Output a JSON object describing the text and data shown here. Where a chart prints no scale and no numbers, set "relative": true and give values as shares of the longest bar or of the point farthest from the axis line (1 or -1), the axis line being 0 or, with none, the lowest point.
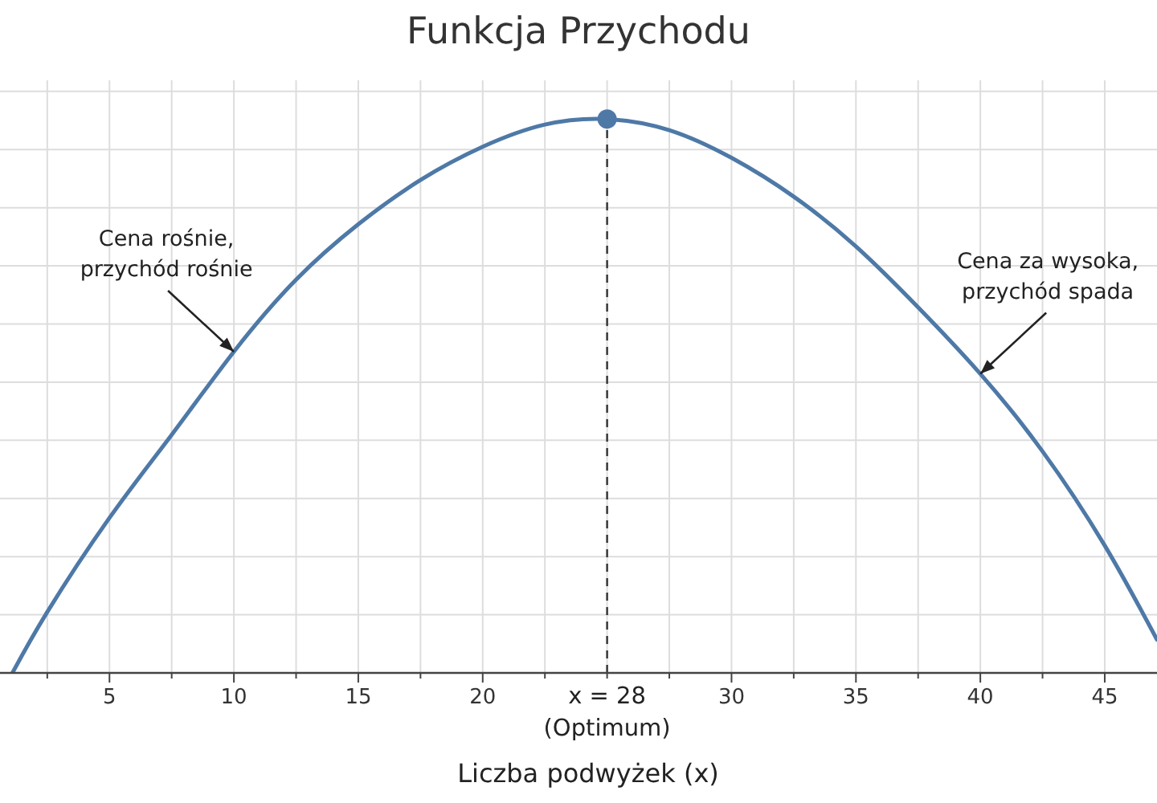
{
  "chart_data": {
    "type": "line",
    "title": "Funkcja Przychodu",
    "xlabel": "Liczba podwyżek (x)",
    "relative": true,
    "xlim": [
      0.6,
      47.1
    ],
    "xticks": [
      {
        "value": 2.5,
        "label": null
      },
      5,
      {
        "value": 7.5,
        "label": null
      },
      10,
      {
        "value": 12.5,
        "label": null
      },
      15,
      {
        "value": 17.5,
        "label": null
      },
      20,
      {
        "value": 22.5,
        "label": null
      },
      {
        "value": 25,
        "label": null
      },
      {
        "value": 27.5,
        "label": null
      },
      30,
      {
        "value": 32.5,
        "label": null
      },
      35,
      {
        "value": 37.5,
        "label": null
      },
      40,
      {
        "value": 42.5,
        "label": null
      },
      45
    ],
    "grid": true,
    "series": [
      {
        "color": "#4e79a7",
        "marker": "none",
        "line_style": "solid",
        "x": [
          1.1,
          2.5,
          5,
          7.5,
          10,
          12.5,
          15,
          17.5,
          20,
          22.5,
          25,
          27.5,
          30,
          32.5,
          35,
          37.5,
          40,
          42.5,
          45,
          47.1
        ],
        "values": [
          0,
          0.11,
          0.28,
          0.43,
          0.58,
          0.71,
          0.81,
          0.89,
          0.95,
          0.99,
          1,
          0.98,
          0.93,
          0.86,
          0.77,
          0.66,
          0.54,
          0.4,
          0.23,
          0.06
        ]
      },
      {
        "type": "scatter",
        "color": "#4e79a7",
        "marker": "circle",
        "x": [
          25
        ],
        "values": [
          1
        ]
      }
    ],
    "ref_lines": [
      {
        "axis": "x",
        "value": 25,
        "color": "#333333",
        "line_style": "dashed"
      }
    ],
    "annotations": [
      {
        "text": "Cena rośnie,\nprzychód rośnie",
        "x": 10,
        "y": 0.58
      },
      {
        "text": "Cena za wysoka,\nprzychód spada",
        "x": 40,
        "y": 0.54
      },
      "x = 28\n(Optimum)"
    ]
  }
}
